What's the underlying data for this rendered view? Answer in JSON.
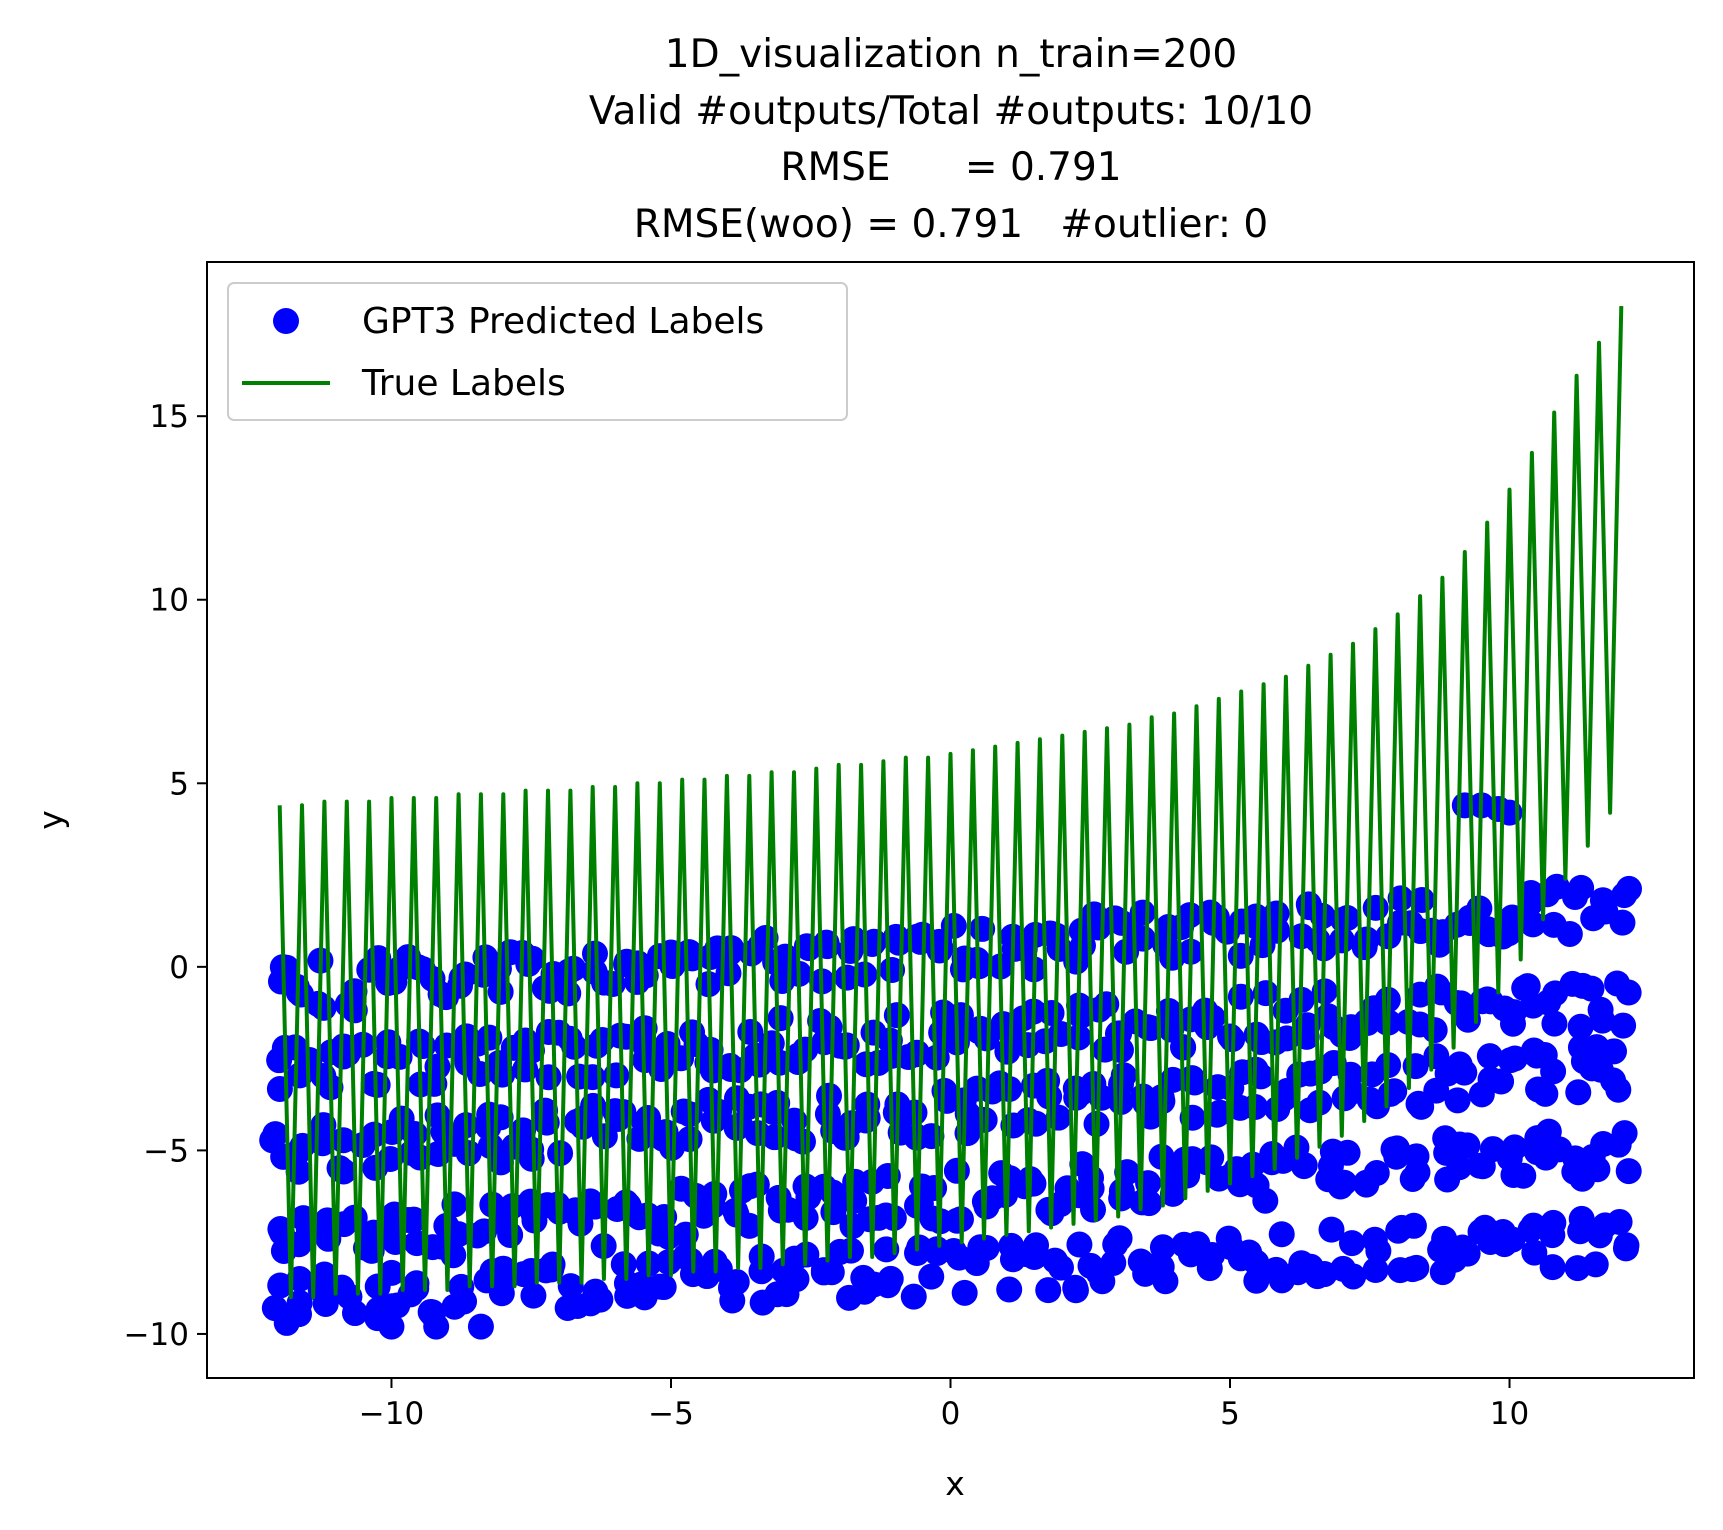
{
  "chart_data": {
    "type": "scatter",
    "title_lines": [
      "1D_visualization  n_train=200",
      "Valid #outputs/Total #outputs: 10/10",
      "RMSE      = 0.791",
      "RMSE(woo) = 0.791   #outlier: 0"
    ],
    "xlabel": "x",
    "ylabel": "y",
    "xlim": [
      -13.3,
      13.3
    ],
    "ylim": [
      -11.2,
      19.2
    ],
    "xticks": [
      -10,
      -5,
      0,
      5,
      10
    ],
    "xtick_labels": [
      "−10",
      "−5",
      "0",
      "5",
      "10"
    ],
    "yticks": [
      -10,
      -5,
      0,
      5,
      10,
      15
    ],
    "ytick_labels": [
      "−10",
      "−5",
      "0",
      "5",
      "10",
      "15"
    ],
    "grid": false,
    "legend_position": "upper-left",
    "colors": {
      "predicted": "#0000ff",
      "true": "#008000"
    },
    "series": [
      {
        "name": "GPT3 Predicted Labels",
        "kind": "scatter",
        "color": "#0000ff",
        "x_range": [
          -12,
          12
        ],
        "count": 200,
        "y_levels_left": [
          -9.0,
          -7.5,
          -5.0,
          -2.8,
          -0.6
        ],
        "y_levels_right": [
          -7.5,
          -5.0,
          -2.8,
          -0.9,
          1.6
        ],
        "step_x": 0.0,
        "y_min": -9.8,
        "y_max": 4.4
      },
      {
        "name": "True Labels",
        "kind": "line",
        "color": "#008000",
        "x_range": [
          -12,
          12
        ],
        "peaks": [
          [
            -12.0,
            4.4
          ],
          [
            -11.6,
            4.4
          ],
          [
            -11.2,
            4.5
          ],
          [
            -10.8,
            4.5
          ],
          [
            -10.4,
            4.5
          ],
          [
            -10.0,
            4.6
          ],
          [
            -9.6,
            4.6
          ],
          [
            -9.2,
            4.6
          ],
          [
            -8.8,
            4.7
          ],
          [
            -8.4,
            4.7
          ],
          [
            -8.0,
            4.7
          ],
          [
            -7.6,
            4.8
          ],
          [
            -7.2,
            4.8
          ],
          [
            -6.8,
            4.8
          ],
          [
            -6.4,
            4.9
          ],
          [
            -6.0,
            4.9
          ],
          [
            -5.6,
            5.0
          ],
          [
            -5.2,
            5.0
          ],
          [
            -4.8,
            5.1
          ],
          [
            -4.4,
            5.1
          ],
          [
            -4.0,
            5.2
          ],
          [
            -3.6,
            5.2
          ],
          [
            -3.2,
            5.3
          ],
          [
            -2.8,
            5.3
          ],
          [
            -2.4,
            5.4
          ],
          [
            -2.0,
            5.5
          ],
          [
            -1.6,
            5.5
          ],
          [
            -1.2,
            5.6
          ],
          [
            -0.8,
            5.7
          ],
          [
            -0.4,
            5.7
          ],
          [
            0.0,
            5.8
          ],
          [
            0.4,
            5.9
          ],
          [
            0.8,
            6.0
          ],
          [
            1.2,
            6.1
          ],
          [
            1.6,
            6.2
          ],
          [
            2.0,
            6.3
          ],
          [
            2.4,
            6.4
          ],
          [
            2.8,
            6.5
          ],
          [
            3.2,
            6.6
          ],
          [
            3.6,
            6.8
          ],
          [
            4.0,
            6.9
          ],
          [
            4.4,
            7.1
          ],
          [
            4.8,
            7.3
          ],
          [
            5.2,
            7.5
          ],
          [
            5.6,
            7.7
          ],
          [
            6.0,
            7.9
          ],
          [
            6.4,
            8.2
          ],
          [
            6.8,
            8.5
          ],
          [
            7.2,
            8.8
          ],
          [
            7.6,
            9.2
          ],
          [
            8.0,
            9.6
          ],
          [
            8.4,
            10.1
          ],
          [
            8.8,
            10.6
          ],
          [
            9.2,
            11.3
          ],
          [
            9.6,
            12.1
          ],
          [
            10.0,
            13.0
          ],
          [
            10.4,
            14.0
          ],
          [
            10.8,
            15.1
          ],
          [
            11.2,
            16.1
          ],
          [
            11.6,
            17.0
          ],
          [
            12.0,
            18.0
          ]
        ],
        "troughs": [
          [
            -11.8,
            -9.0
          ],
          [
            -11.4,
            -9.0
          ],
          [
            -11.0,
            -8.9
          ],
          [
            -10.6,
            -8.9
          ],
          [
            -10.2,
            -8.9
          ],
          [
            -9.8,
            -8.8
          ],
          [
            -9.4,
            -8.8
          ],
          [
            -9.0,
            -8.8
          ],
          [
            -8.6,
            -8.7
          ],
          [
            -8.2,
            -8.7
          ],
          [
            -7.8,
            -8.7
          ],
          [
            -7.4,
            -8.6
          ],
          [
            -7.0,
            -8.6
          ],
          [
            -6.6,
            -8.6
          ],
          [
            -6.2,
            -8.5
          ],
          [
            -5.8,
            -8.5
          ],
          [
            -5.4,
            -8.4
          ],
          [
            -5.0,
            -8.4
          ],
          [
            -4.6,
            -8.3
          ],
          [
            -4.2,
            -8.3
          ],
          [
            -3.8,
            -8.2
          ],
          [
            -3.4,
            -8.2
          ],
          [
            -3.0,
            -8.1
          ],
          [
            -2.6,
            -8.1
          ],
          [
            -2.2,
            -8.0
          ],
          [
            -1.8,
            -7.9
          ],
          [
            -1.4,
            -7.9
          ],
          [
            -1.0,
            -7.8
          ],
          [
            -0.6,
            -7.7
          ],
          [
            -0.2,
            -7.6
          ],
          [
            0.2,
            -7.5
          ],
          [
            0.6,
            -7.4
          ],
          [
            1.0,
            -7.3
          ],
          [
            1.4,
            -7.2
          ],
          [
            1.8,
            -7.1
          ],
          [
            2.2,
            -7.0
          ],
          [
            2.6,
            -6.9
          ],
          [
            3.0,
            -6.8
          ],
          [
            3.4,
            -6.6
          ],
          [
            3.8,
            -6.5
          ],
          [
            4.2,
            -6.3
          ],
          [
            4.6,
            -6.1
          ],
          [
            5.0,
            -5.9
          ],
          [
            5.4,
            -5.7
          ],
          [
            5.8,
            -5.5
          ],
          [
            6.2,
            -5.2
          ],
          [
            6.6,
            -4.9
          ],
          [
            7.0,
            -4.6
          ],
          [
            7.4,
            -4.2
          ],
          [
            7.8,
            -3.8
          ],
          [
            8.2,
            -3.3
          ],
          [
            8.6,
            -2.8
          ],
          [
            9.0,
            -2.2
          ],
          [
            9.4,
            -1.5
          ],
          [
            9.8,
            -0.7
          ],
          [
            10.2,
            0.2
          ],
          [
            10.6,
            1.3
          ],
          [
            11.0,
            2.4
          ],
          [
            11.4,
            3.3
          ],
          [
            11.8,
            4.2
          ]
        ]
      }
    ]
  }
}
